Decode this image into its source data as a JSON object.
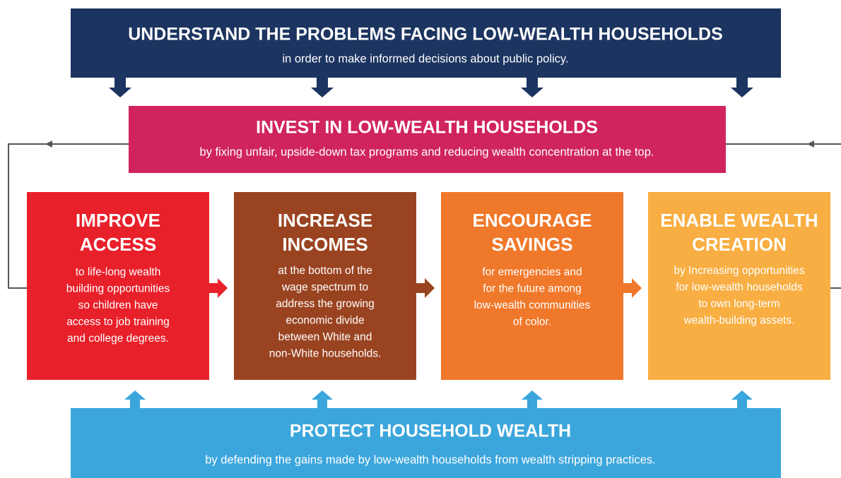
{
  "header": {
    "title": "UNDERSTAND THE PROBLEMS FACING LOW-WEALTH HOUSEHOLDS",
    "subtitle": "in order to make informed decisions about public policy."
  },
  "invest": {
    "title": "INVEST IN LOW-WEALTH HOUSEHOLDS",
    "subtitle": "by fixing unfair, upside-down tax programs and reducing wealth concentration at the top."
  },
  "pillars": [
    {
      "title": [
        "IMPROVE",
        "ACCESS"
      ],
      "body": [
        "to life-long wealth",
        "building opportunities",
        "so children have",
        "access to job training",
        "and college degrees."
      ]
    },
    {
      "title": [
        "INCREASE",
        "INCOMES"
      ],
      "body": [
        "at the bottom of the",
        "wage spectrum to",
        "address the growing",
        "economic divide",
        "between White and",
        "non-White households."
      ]
    },
    {
      "title": [
        "ENCOURAGE",
        "SAVINGS"
      ],
      "body": [
        "for emergencies and",
        "for the future among",
        "low-wealth communities",
        "of color."
      ]
    },
    {
      "title": [
        "ENABLE WEALTH",
        "CREATION"
      ],
      "body": [
        "by Increasing opportunities",
        "for low-wealth households",
        "to own long-term",
        "wealth-building assets."
      ]
    }
  ],
  "protect": {
    "title": "PROTECT HOUSEHOLD WEALTH",
    "subtitle": "by defending the gains made by low-wealth households from wealth stripping practices."
  }
}
